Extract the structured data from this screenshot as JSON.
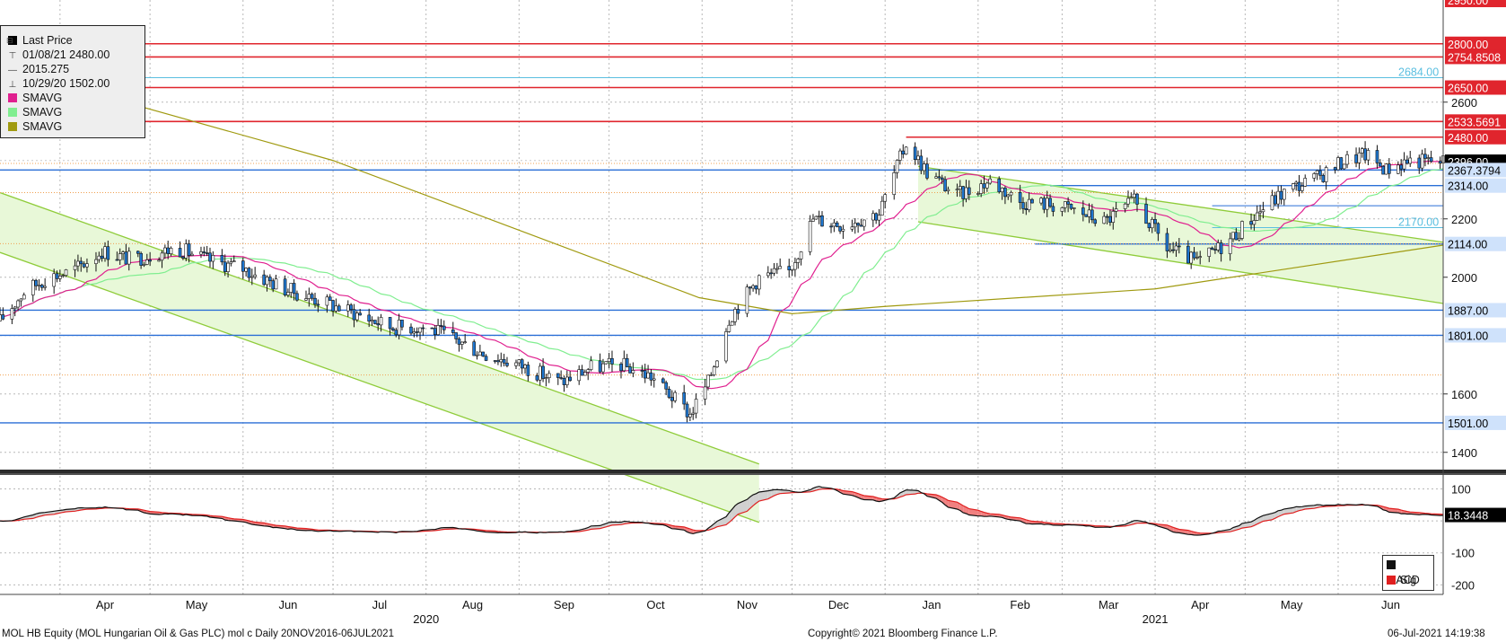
{
  "chart_data": {
    "type": "candlestick",
    "security": "MOL HB Equity (MOL Hungarian Oil & Gas PLC) mol c  Daily 20NOV2016-06JUL2021",
    "copyright": "Copyright© 2021 Bloomberg Finance L.P.",
    "timestamp": "06-Jul-2021 14:19:38",
    "ylim": [
      1350,
      2950
    ],
    "yticks": [
      "1400",
      "1600",
      "2000",
      "2200",
      "2600"
    ],
    "xlim": [
      "2020-03-12",
      "2021-07-06"
    ],
    "months": [
      {
        "label": "Apr",
        "date": "2020-04-01"
      },
      {
        "label": "May",
        "date": "2020-05-01"
      },
      {
        "label": "Jun",
        "date": "2020-06-01"
      },
      {
        "label": "Jul",
        "date": "2020-07-01"
      },
      {
        "label": "Aug",
        "date": "2020-08-01"
      },
      {
        "label": "Sep",
        "date": "2020-09-01"
      },
      {
        "label": "Oct",
        "date": "2020-10-01"
      },
      {
        "label": "Nov",
        "date": "2020-11-01"
      },
      {
        "label": "Dec",
        "date": "2020-12-01"
      },
      {
        "label": "Jan",
        "date": "2021-01-01"
      },
      {
        "label": "Feb",
        "date": "2021-02-01"
      },
      {
        "label": "Mar",
        "date": "2021-03-01"
      },
      {
        "label": "Apr",
        "date": "2021-04-01"
      },
      {
        "label": "May",
        "date": "2021-05-01"
      },
      {
        "label": "Jun",
        "date": "2021-06-01"
      }
    ],
    "years": [
      {
        "label": "2020",
        "date": "2020-08-01"
      },
      {
        "label": "2021",
        "date": "2021-04-01"
      }
    ],
    "legend": {
      "title": "Last Price",
      "high_label": "01/08/21 2480.00",
      "avg_label": "2015.275",
      "low_label": "10/29/20 1502.00",
      "sma": [
        {
          "label": "SMAVG",
          "color": "#e0208f"
        },
        {
          "label": "SMAVG",
          "color": "#80ee90"
        },
        {
          "label": "SMAVG",
          "color": "#a09a10"
        }
      ]
    },
    "colors": {
      "up": "#ffffff",
      "down": "#1f77d0",
      "candle_edge": "#111111",
      "channel_line": "#8fcc3a",
      "channel_fill": "#e8f8d8",
      "red_level": "#e0252d",
      "blue_level": "#2a6fd6",
      "cyan_level": "#5bbfe0",
      "orange_level": "#f0a050",
      "sma_fast": "#e0208f",
      "sma_mid": "#80ee90",
      "sma_slow": "#a09a10",
      "macd": "#111111",
      "sig": "#e02020",
      "macd_fill_pos": "#d0d0d0",
      "macd_fill_neg": "#f08080"
    },
    "levels": [
      {
        "value": 2800.0,
        "label": "2800.00",
        "kind": "red",
        "from": "2020-03-12"
      },
      {
        "value": 2754.8508,
        "label": "2754.8508",
        "kind": "red",
        "from": "2020-03-12"
      },
      {
        "value": 2684.0,
        "label": "2684.00",
        "kind": "cyan",
        "from": "2020-03-12"
      },
      {
        "value": 2650.0,
        "label": "2650.00",
        "kind": "red",
        "from": "2020-03-12"
      },
      {
        "value": 2533.5691,
        "label": "2533.5691",
        "kind": "red",
        "from": "2020-03-12"
      },
      {
        "value": 2480.0,
        "label": "2480.00",
        "kind": "red",
        "from": "2021-01-08"
      },
      {
        "value": 2367.3794,
        "label": "2367.3794",
        "kind": "blue",
        "from": "2020-03-12"
      },
      {
        "value": 2314.0,
        "label": "2314.00",
        "kind": "blue",
        "from": "2021-02-25"
      },
      {
        "value": 2245.0,
        "label": "",
        "kind": "blue_thin",
        "from": "2021-04-20"
      },
      {
        "value": 2170.0,
        "label": "2170.00",
        "kind": "cyan",
        "from": "2021-04-20"
      },
      {
        "value": 2114.0,
        "label": "2114.00",
        "kind": "blue",
        "from": "2021-02-20"
      },
      {
        "value": 1887.0,
        "label": "1887.00",
        "kind": "blue",
        "from": "2020-03-12"
      },
      {
        "value": 1801.0,
        "label": "1801.00",
        "kind": "blue",
        "from": "2020-03-12"
      },
      {
        "value": 1501.0,
        "label": "1501.00",
        "kind": "blue",
        "from": "2020-03-12"
      },
      {
        "value": 2390.0,
        "label": "",
        "kind": "orange_dot",
        "from": "2020-03-12"
      },
      {
        "value": 2290.0,
        "label": "",
        "kind": "orange_dot",
        "from": "2020-03-12"
      },
      {
        "value": 2115.0,
        "label": "",
        "kind": "orange_dot",
        "from": "2020-03-12"
      },
      {
        "value": 1665.0,
        "label": "",
        "kind": "orange_dot",
        "from": "2020-03-12"
      }
    ],
    "last_price": {
      "value": 2396.0,
      "label": "2396.00"
    },
    "top_tag": {
      "value": 2950.0,
      "label": "2950.00"
    },
    "channels": [
      {
        "upper": [
          [
            "2020-03-12",
            2290
          ],
          [
            "2020-11-20",
            1360
          ]
        ],
        "lower": [
          [
            "2020-03-12",
            2085
          ],
          [
            "2020-11-20",
            1160
          ]
        ]
      },
      {
        "upper": [
          [
            "2021-01-12",
            2380
          ],
          [
            "2021-07-06",
            2120
          ]
        ],
        "lower": [
          [
            "2021-01-12",
            2190
          ],
          [
            "2021-07-06",
            1910
          ]
        ]
      }
    ],
    "trendlines": [
      {
        "points": [
          [
            "2020-03-12",
            2720
          ],
          [
            "2020-07-01",
            2400
          ],
          [
            "2020-10-31",
            1930
          ],
          [
            "2020-12-01",
            1875
          ],
          [
            "2021-01-01",
            1900
          ],
          [
            "2021-04-01",
            1960
          ],
          [
            "2021-07-06",
            2110
          ]
        ],
        "color": "#a09a10"
      }
    ],
    "ohlc_anchors": [
      [
        "2020-03-12",
        1850
      ],
      [
        "2020-03-20",
        1950
      ],
      [
        "2020-03-28",
        2000
      ],
      [
        "2020-04-05",
        2020
      ],
      [
        "2020-04-15",
        2090
      ],
      [
        "2020-04-25",
        2060
      ],
      [
        "2020-05-10",
        2100
      ],
      [
        "2020-05-20",
        2060
      ],
      [
        "2020-06-01",
        2030
      ],
      [
        "2020-06-15",
        1960
      ],
      [
        "2020-06-25",
        1925
      ],
      [
        "2020-07-10",
        1870
      ],
      [
        "2020-07-20",
        1830
      ],
      [
        "2020-08-01",
        1830
      ],
      [
        "2020-08-10",
        1790
      ],
      [
        "2020-08-20",
        1740
      ],
      [
        "2020-09-01",
        1700
      ],
      [
        "2020-09-15",
        1640
      ],
      [
        "2020-09-25",
        1690
      ],
      [
        "2020-10-05",
        1700
      ],
      [
        "2020-10-15",
        1660
      ],
      [
        "2020-10-28",
        1530
      ],
      [
        "2020-11-03",
        1640
      ],
      [
        "2020-11-10",
        1860
      ],
      [
        "2020-11-20",
        2000
      ],
      [
        "2020-11-30",
        2020
      ],
      [
        "2020-12-08",
        2200
      ],
      [
        "2020-12-18",
        2180
      ],
      [
        "2020-12-30",
        2220
      ],
      [
        "2021-01-08",
        2460
      ],
      [
        "2021-01-15",
        2360
      ],
      [
        "2021-01-25",
        2280
      ],
      [
        "2021-02-05",
        2330
      ],
      [
        "2021-02-15",
        2260
      ],
      [
        "2021-02-25",
        2250
      ],
      [
        "2021-03-05",
        2230
      ],
      [
        "2021-03-15",
        2190
      ],
      [
        "2021-03-25",
        2260
      ],
      [
        "2021-04-05",
        2100
      ],
      [
        "2021-04-15",
        2050
      ],
      [
        "2021-04-25",
        2120
      ],
      [
        "2021-05-05",
        2220
      ],
      [
        "2021-05-15",
        2300
      ],
      [
        "2021-05-25",
        2340
      ],
      [
        "2021-06-03",
        2400
      ],
      [
        "2021-06-10",
        2420
      ],
      [
        "2021-06-17",
        2370
      ],
      [
        "2021-06-24",
        2400
      ],
      [
        "2021-07-06",
        2396
      ]
    ],
    "macd_panel": {
      "ylim": [
        -230,
        135
      ],
      "yticks": [
        "100",
        "-100",
        "-200"
      ],
      "value_label": "18.3448",
      "legend": [
        {
          "label": "MACD",
          "color": "#111111"
        },
        {
          "label": "Sig",
          "color": "#e02020"
        }
      ]
    }
  }
}
